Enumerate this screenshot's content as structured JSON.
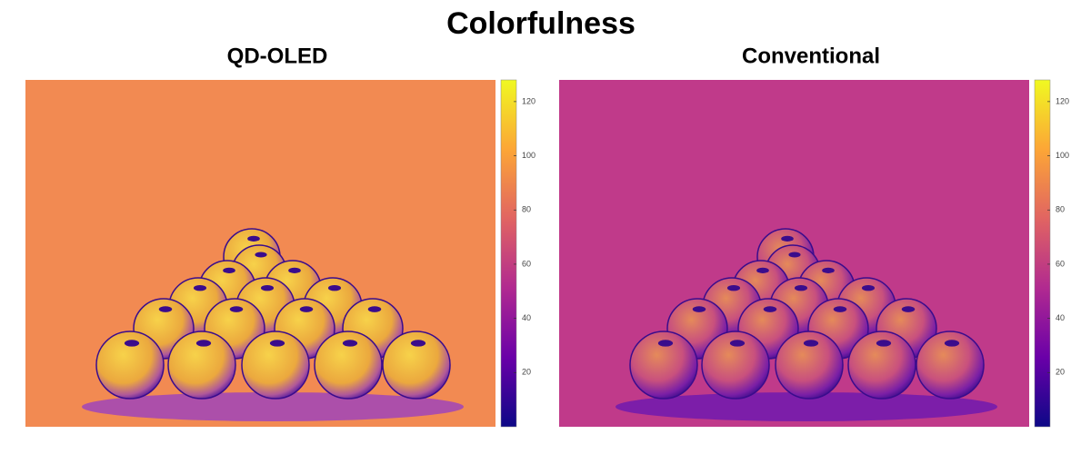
{
  "title": "Colorfulness",
  "panels": [
    {
      "title": "QD-OLED",
      "clim": [
        0,
        128
      ],
      "ticks": [
        20,
        40,
        60,
        80,
        100,
        120
      ]
    },
    {
      "title": "Conventional",
      "clim": [
        0,
        128
      ],
      "ticks": [
        20,
        40,
        60,
        80,
        100,
        120
      ]
    }
  ]
}
